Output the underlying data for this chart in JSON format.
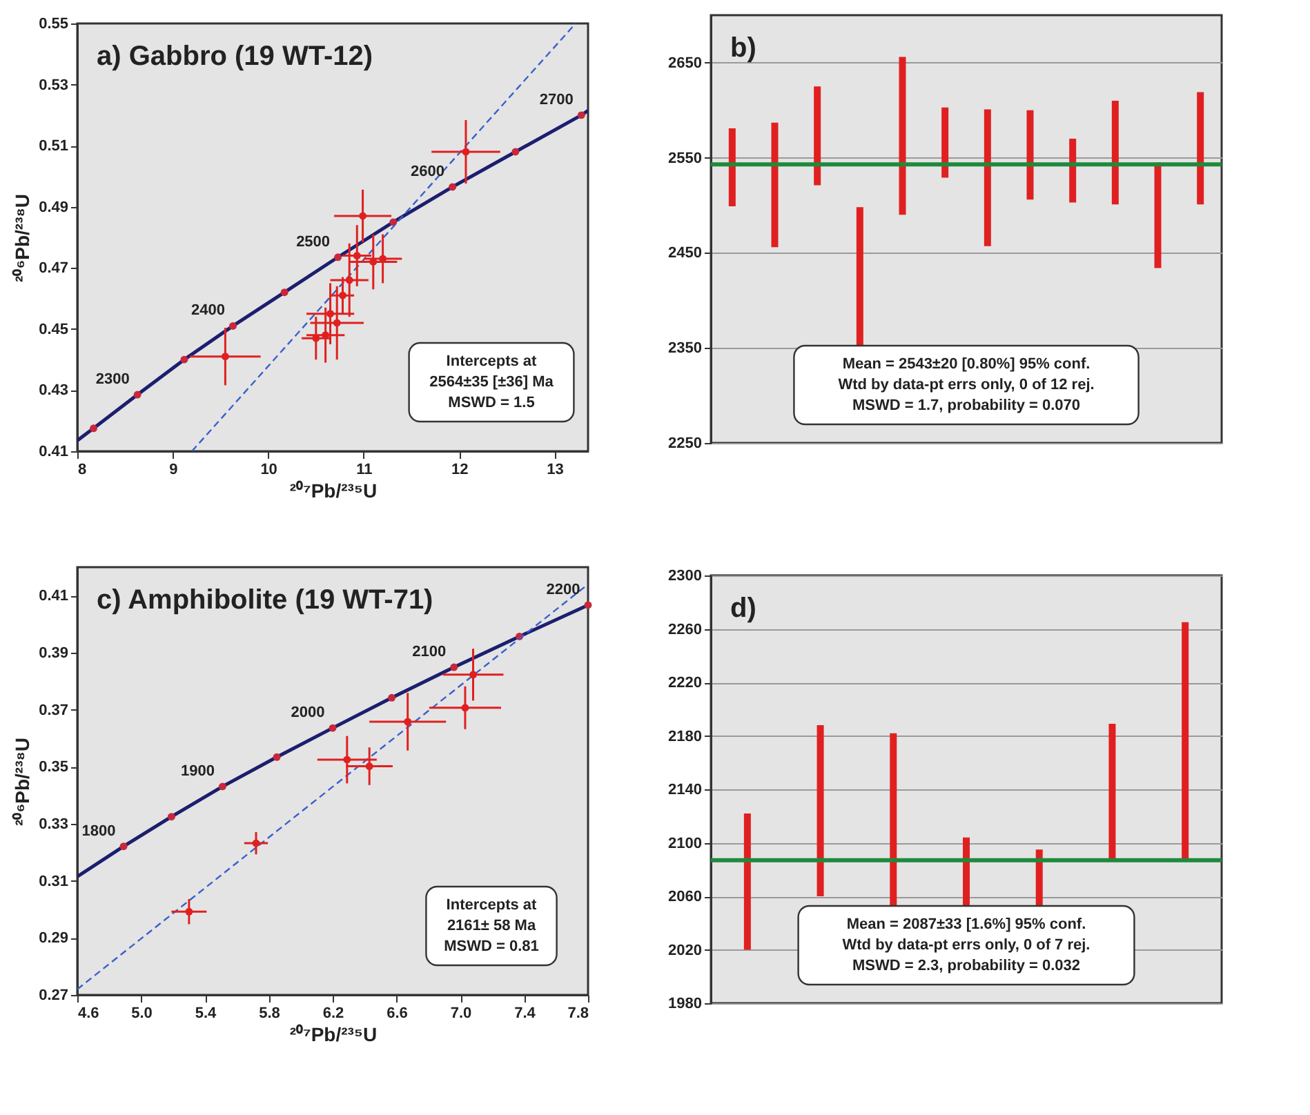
{
  "chart_data": [
    {
      "type": "scatter",
      "title": "a) Gabbro (19 WT-12)",
      "xlabel": "²⁰⁷Pb/²³⁵U",
      "ylabel": "²⁰⁶Pb/²³⁸U",
      "xlim": [
        8,
        13.35
      ],
      "ylim": [
        0.41,
        0.55
      ],
      "xticks": [
        8,
        9,
        10,
        11,
        12,
        13
      ],
      "yticks": [
        0.41,
        0.43,
        0.45,
        0.47,
        0.49,
        0.51,
        0.53,
        0.55
      ],
      "grid": false,
      "annotations": [
        "Intercepts at",
        "2564±35  [±36] Ma",
        "MSWD = 1.5",
        {
          "text": "2300",
          "x": 8.63,
          "y": 0.4285
        },
        {
          "text": "2400",
          "x": 9.63,
          "y": 0.451
        },
        {
          "text": "2500",
          "x": 10.73,
          "y": 0.4735
        },
        {
          "text": "2600",
          "x": 11.93,
          "y": 0.4965
        },
        {
          "text": "2700",
          "x": 13.28,
          "y": 0.52
        }
      ],
      "series": [
        {
          "type": "line",
          "color": "#1c1f6e",
          "x": [
            8,
            8.17,
            8.63,
            9.12,
            9.63,
            10.17,
            10.73,
            11.31,
            11.93,
            12.59,
            13.28,
            13.35
          ],
          "values": [
            0.4135,
            0.4175,
            0.4285,
            0.44,
            0.451,
            0.462,
            0.4735,
            0.485,
            0.4965,
            0.508,
            0.52,
            0.5215
          ]
        },
        {
          "type": "scatter",
          "color": "#c8283c",
          "marker": "circle",
          "x": [
            8.17,
            8.63,
            9.12,
            9.63,
            10.17,
            10.73,
            11.31,
            11.93,
            12.59,
            13.28
          ],
          "values": [
            0.4175,
            0.4285,
            0.44,
            0.451,
            0.462,
            0.4735,
            0.485,
            0.4965,
            0.508,
            0.52
          ]
        },
        {
          "type": "line",
          "color": "#3a5fcd",
          "line_style": "dashed",
          "x": [
            9.2,
            13.22
          ],
          "values": [
            0.41,
            0.55
          ]
        },
        {
          "type": "scatter",
          "color": "#e02020",
          "marker": "circle",
          "x": [
            9.55,
            12.07,
            10.99,
            10.93,
            11.1,
            11.2,
            10.85,
            10.78,
            10.65,
            10.72,
            10.5,
            10.6
          ],
          "values": [
            0.441,
            0.508,
            0.487,
            0.474,
            0.472,
            0.473,
            0.466,
            0.461,
            0.455,
            0.452,
            0.447,
            0.448
          ],
          "xerrors": [
            0.37,
            0.36,
            0.3,
            0.15,
            0.25,
            0.2,
            0.2,
            0.12,
            0.25,
            0.28,
            0.15,
            0.2
          ],
          "errors": [
            0.0094,
            0.0104,
            0.0086,
            0.01,
            0.009,
            0.008,
            0.012,
            0.006,
            0.01,
            0.012,
            0.007,
            0.009
          ]
        }
      ]
    },
    {
      "type": "bar",
      "title": "b)",
      "categories": [
        null,
        null,
        null,
        null,
        null,
        null,
        null,
        null,
        null,
        null,
        null,
        null
      ],
      "base": [
        2499,
        2456,
        2521,
        2346,
        2490,
        2529,
        2457,
        2506,
        2503,
        2501,
        2434,
        2501
      ],
      "values": [
        82,
        131,
        104,
        152,
        166,
        74,
        144,
        94,
        67,
        109,
        111,
        118
      ],
      "color": "#e02020",
      "ylim": [
        2250,
        2700
      ],
      "yticks": [
        2250,
        2350,
        2450,
        2550,
        2650
      ],
      "grid": "y",
      "tick_labels": "y",
      "ref_lines": [
        {
          "axis": "y",
          "value": 2543,
          "color": "#1e8a3c"
        }
      ],
      "annotations": [
        "Mean = 2543±20  [0.80%]  95% conf.",
        "Wtd by data-pt errs only, 0 of 12 rej.",
        "MSWD = 1.7, probability = 0.070"
      ]
    },
    {
      "type": "scatter",
      "title": "c) Amphibolite (19 WT-71)",
      "xlabel": "²⁰⁷Pb/²³⁵U",
      "ylabel": "²⁰⁶Pb/²³⁸U",
      "xlim": [
        4.6,
        7.8
      ],
      "ylim": [
        0.27,
        0.42
      ],
      "xticks": [
        4.6,
        {
          "value": 5,
          "label": "5.0"
        },
        5.4,
        5.8,
        6.2,
        6.6,
        {
          "value": 7,
          "label": "7.0"
        },
        7.4,
        7.8
      ],
      "yticks": [
        0.27,
        0.29,
        0.31,
        0.33,
        0.35,
        0.37,
        0.39,
        0.41
      ],
      "grid": false,
      "annotations": [
        "Intercepts at",
        "2161± 58 Ma",
        "MSWD = 0.81",
        {
          "text": "1800",
          "x": 4.89,
          "y": 0.3221
        },
        {
          "text": "1900",
          "x": 5.51,
          "y": 0.3431
        },
        {
          "text": "2000",
          "x": 6.2,
          "y": 0.3636
        },
        {
          "text": "2100",
          "x": 6.96,
          "y": 0.3849
        },
        {
          "text": "2200",
          "x": 7.8,
          "y": 0.4067
        }
      ],
      "series": [
        {
          "type": "line",
          "color": "#1c1f6e",
          "x": [
            4.6,
            4.89,
            5.19,
            5.51,
            5.85,
            6.2,
            6.57,
            6.96,
            7.37,
            7.8
          ],
          "values": [
            0.3115,
            0.3221,
            0.3325,
            0.3431,
            0.3534,
            0.3636,
            0.3742,
            0.3849,
            0.3957,
            0.4067
          ]
        },
        {
          "type": "scatter",
          "color": "#c8283c",
          "marker": "circle",
          "x": [
            4.89,
            5.19,
            5.51,
            5.85,
            6.2,
            6.57,
            6.96,
            7.37,
            7.8
          ],
          "values": [
            0.3221,
            0.3325,
            0.3431,
            0.3534,
            0.3636,
            0.3742,
            0.3849,
            0.3957,
            0.4067
          ]
        },
        {
          "type": "line",
          "color": "#3a5fcd",
          "line_style": "dashed",
          "x": [
            4.6,
            7.8
          ],
          "values": [
            0.272,
            0.414
          ]
        },
        {
          "type": "scatter",
          "color": "#e02020",
          "marker": "circle",
          "x": [
            5.3,
            5.72,
            6.29,
            6.43,
            6.67,
            7.03,
            7.08
          ],
          "values": [
            0.2992,
            0.3232,
            0.3525,
            0.3502,
            0.3658,
            0.3707,
            0.3823
          ],
          "xerrors": [
            0.11,
            0.074,
            0.186,
            0.146,
            0.24,
            0.225,
            0.19
          ],
          "errors": [
            0.0044,
            0.0039,
            0.0083,
            0.0066,
            0.0101,
            0.0075,
            0.0091
          ]
        }
      ]
    },
    {
      "type": "bar",
      "title": "d)",
      "categories": [
        null,
        null,
        null,
        null,
        null,
        null,
        null
      ],
      "base": [
        2020,
        2060,
        2047,
        2047,
        2047,
        2087,
        2087
      ],
      "values": [
        102,
        128,
        135,
        57,
        48,
        102,
        178
      ],
      "color": "#e02020",
      "ylim": [
        1980,
        2300
      ],
      "yticks": [
        1980,
        2020,
        2060,
        2100,
        2140,
        2180,
        2220,
        2260,
        2300
      ],
      "grid": "y",
      "tick_labels": "y",
      "ref_lines": [
        {
          "axis": "y",
          "value": 2087,
          "color": "#1e8a3c"
        }
      ],
      "annotations": [
        "Mean = 2087±33  [1.6%]  95% conf.",
        "Wtd by data-pt errs only, 0 of 7 rej.",
        "MSWD = 2.3, probability = 0.032"
      ]
    }
  ]
}
